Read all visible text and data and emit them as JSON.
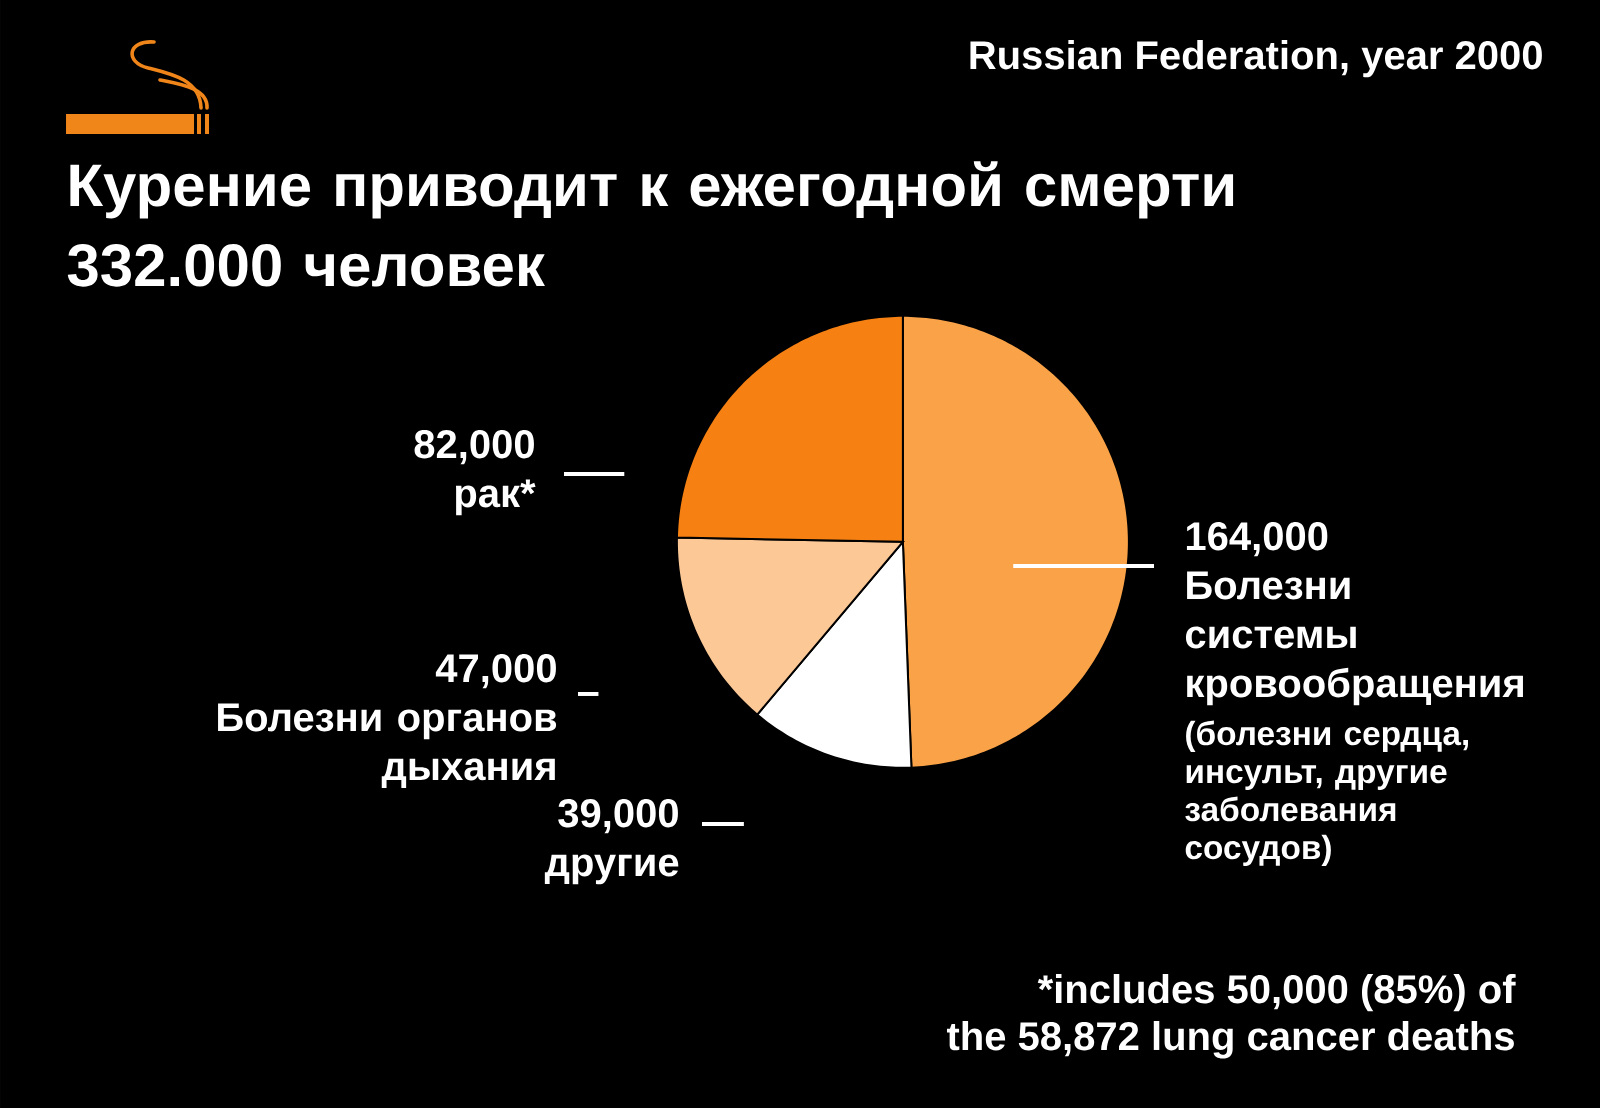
{
  "chart_data": {
    "type": "pie",
    "title": "Курение приводит к ежегодной смерти 332.000 человек",
    "subtitle": "Russian Federation, year 2000",
    "categories": [
      "Болезни системы кровообращения",
      "другие",
      "Болезни органов дыхания",
      "рак*"
    ],
    "values": [
      164000,
      39000,
      47000,
      82000
    ],
    "colors": [
      "#f9a247",
      "#ffffff",
      "#fcc896",
      "#f68011"
    ],
    "value_labels": [
      "164,000",
      "39,000",
      "47,000",
      "82,000"
    ],
    "annotations": [
      "(болезни сердца, инсульт, другие заболевания сосудов)",
      "*includes 50,000 (85%) of the 58,872 lung cancer deaths"
    ]
  }
}
